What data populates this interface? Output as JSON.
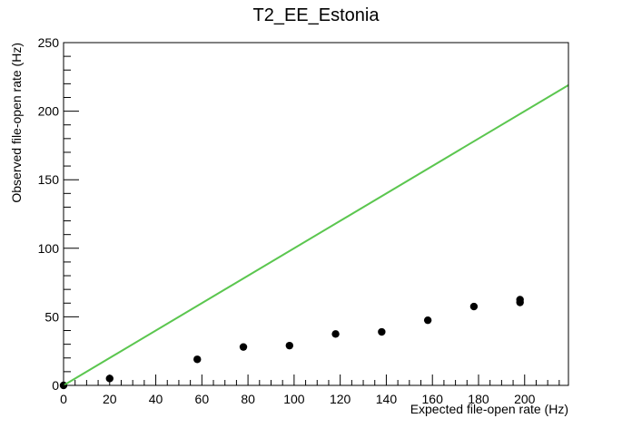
{
  "chart_data": {
    "type": "scatter",
    "title": "T2_EE_Estonia",
    "xlabel": "Expected file-open rate (Hz)",
    "ylabel": "Observed file-open rate (Hz)",
    "xlim": [
      0,
      219
    ],
    "ylim": [
      0,
      250
    ],
    "x_ticks": [
      0,
      20,
      40,
      60,
      80,
      100,
      120,
      140,
      160,
      180,
      200
    ],
    "y_ticks": [
      0,
      50,
      100,
      150,
      200,
      250
    ],
    "grid": false,
    "series": [
      {
        "kind": "points",
        "marker_color": "#000000",
        "points": [
          [
            0,
            0
          ],
          [
            20,
            5
          ],
          [
            58,
            19
          ],
          [
            78,
            28
          ],
          [
            98,
            29
          ],
          [
            118,
            37.5
          ],
          [
            138,
            39
          ],
          [
            158,
            47.5
          ],
          [
            178,
            57.5
          ],
          [
            198,
            60.5
          ],
          [
            198,
            62.5
          ]
        ]
      },
      {
        "kind": "line",
        "color": "#5bc64f",
        "points": [
          [
            0,
            0
          ],
          [
            219,
            219
          ]
        ]
      }
    ]
  }
}
